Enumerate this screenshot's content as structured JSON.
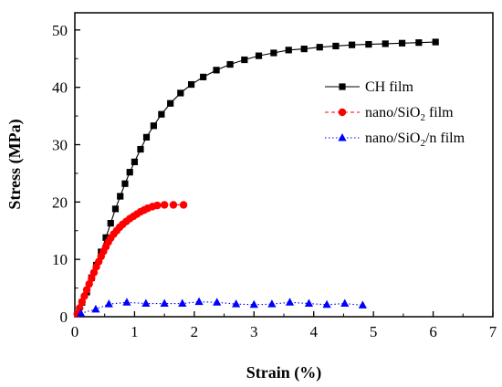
{
  "chart_data": {
    "type": "line",
    "xlabel": "Strain (%)",
    "ylabel": "Stress (MPa)",
    "xlim": [
      0,
      7
    ],
    "ylim": [
      0,
      53
    ],
    "xticks": [
      "0",
      "1",
      "2",
      "3",
      "4",
      "5",
      "6",
      "7"
    ],
    "yticks": [
      "0",
      "10",
      "20",
      "30",
      "40",
      "50"
    ],
    "grid": false,
    "legend_position": "top-right",
    "legend_order": [
      "ch",
      "nano",
      "nanon"
    ],
    "legend": {
      "ch": "CH film",
      "nano": "nano/SiO",
      "nano_sub": "2",
      "nano_tail": " film",
      "nanon": "nano/SiO",
      "nanon_sub": "2",
      "nanon_tail": "/n film"
    },
    "series": [
      {
        "key": "ch",
        "color": "#000000",
        "marker": "square",
        "line": "solid",
        "points": [
          [
            0.12,
            2.5
          ],
          [
            0.2,
            4.3
          ],
          [
            0.28,
            6.8
          ],
          [
            0.36,
            9.0
          ],
          [
            0.44,
            11.3
          ],
          [
            0.52,
            13.8
          ],
          [
            0.6,
            16.3
          ],
          [
            0.68,
            18.8
          ],
          [
            0.76,
            21.0
          ],
          [
            0.84,
            23.2
          ],
          [
            0.92,
            25.2
          ],
          [
            1.0,
            27.0
          ],
          [
            1.1,
            29.2
          ],
          [
            1.2,
            31.3
          ],
          [
            1.32,
            33.3
          ],
          [
            1.45,
            35.3
          ],
          [
            1.6,
            37.2
          ],
          [
            1.77,
            39.0
          ],
          [
            1.95,
            40.5
          ],
          [
            2.15,
            41.8
          ],
          [
            2.37,
            43.0
          ],
          [
            2.6,
            44.0
          ],
          [
            2.84,
            44.8
          ],
          [
            3.08,
            45.5
          ],
          [
            3.33,
            46.0
          ],
          [
            3.58,
            46.5
          ],
          [
            3.84,
            46.7
          ],
          [
            4.1,
            47.0
          ],
          [
            4.37,
            47.2
          ],
          [
            4.64,
            47.4
          ],
          [
            4.92,
            47.5
          ],
          [
            5.2,
            47.6
          ],
          [
            5.48,
            47.7
          ],
          [
            5.76,
            47.8
          ],
          [
            6.04,
            47.9
          ]
        ]
      },
      {
        "key": "nano",
        "color": "#ff0000",
        "marker": "circle",
        "line": "dashed",
        "points": [
          [
            0.04,
            0.5
          ],
          [
            0.08,
            1.5
          ],
          [
            0.12,
            2.6
          ],
          [
            0.16,
            3.6
          ],
          [
            0.2,
            4.7
          ],
          [
            0.24,
            5.7
          ],
          [
            0.28,
            6.7
          ],
          [
            0.32,
            7.7
          ],
          [
            0.36,
            8.7
          ],
          [
            0.4,
            9.6
          ],
          [
            0.44,
            10.5
          ],
          [
            0.48,
            11.4
          ],
          [
            0.52,
            12.2
          ],
          [
            0.56,
            13.0
          ],
          [
            0.6,
            13.7
          ],
          [
            0.65,
            14.4
          ],
          [
            0.7,
            15.0
          ],
          [
            0.75,
            15.6
          ],
          [
            0.8,
            16.1
          ],
          [
            0.86,
            16.6
          ],
          [
            0.92,
            17.1
          ],
          [
            0.98,
            17.5
          ],
          [
            1.04,
            17.9
          ],
          [
            1.1,
            18.3
          ],
          [
            1.16,
            18.6
          ],
          [
            1.22,
            18.9
          ],
          [
            1.3,
            19.2
          ],
          [
            1.38,
            19.4
          ],
          [
            1.5,
            19.5
          ],
          [
            1.65,
            19.5
          ],
          [
            1.82,
            19.5
          ]
        ]
      },
      {
        "key": "nanon",
        "color": "#0000ff",
        "marker": "triangle",
        "line": "dotted",
        "points": [
          [
            0.1,
            0.6
          ],
          [
            0.35,
            1.3
          ],
          [
            0.57,
            2.2
          ],
          [
            0.87,
            2.5
          ],
          [
            1.19,
            2.3
          ],
          [
            1.5,
            2.3
          ],
          [
            1.8,
            2.3
          ],
          [
            2.08,
            2.6
          ],
          [
            2.38,
            2.5
          ],
          [
            2.7,
            2.2
          ],
          [
            3.0,
            2.1
          ],
          [
            3.3,
            2.2
          ],
          [
            3.6,
            2.5
          ],
          [
            3.92,
            2.3
          ],
          [
            4.22,
            2.1
          ],
          [
            4.52,
            2.3
          ],
          [
            4.82,
            2.0
          ]
        ]
      }
    ]
  }
}
